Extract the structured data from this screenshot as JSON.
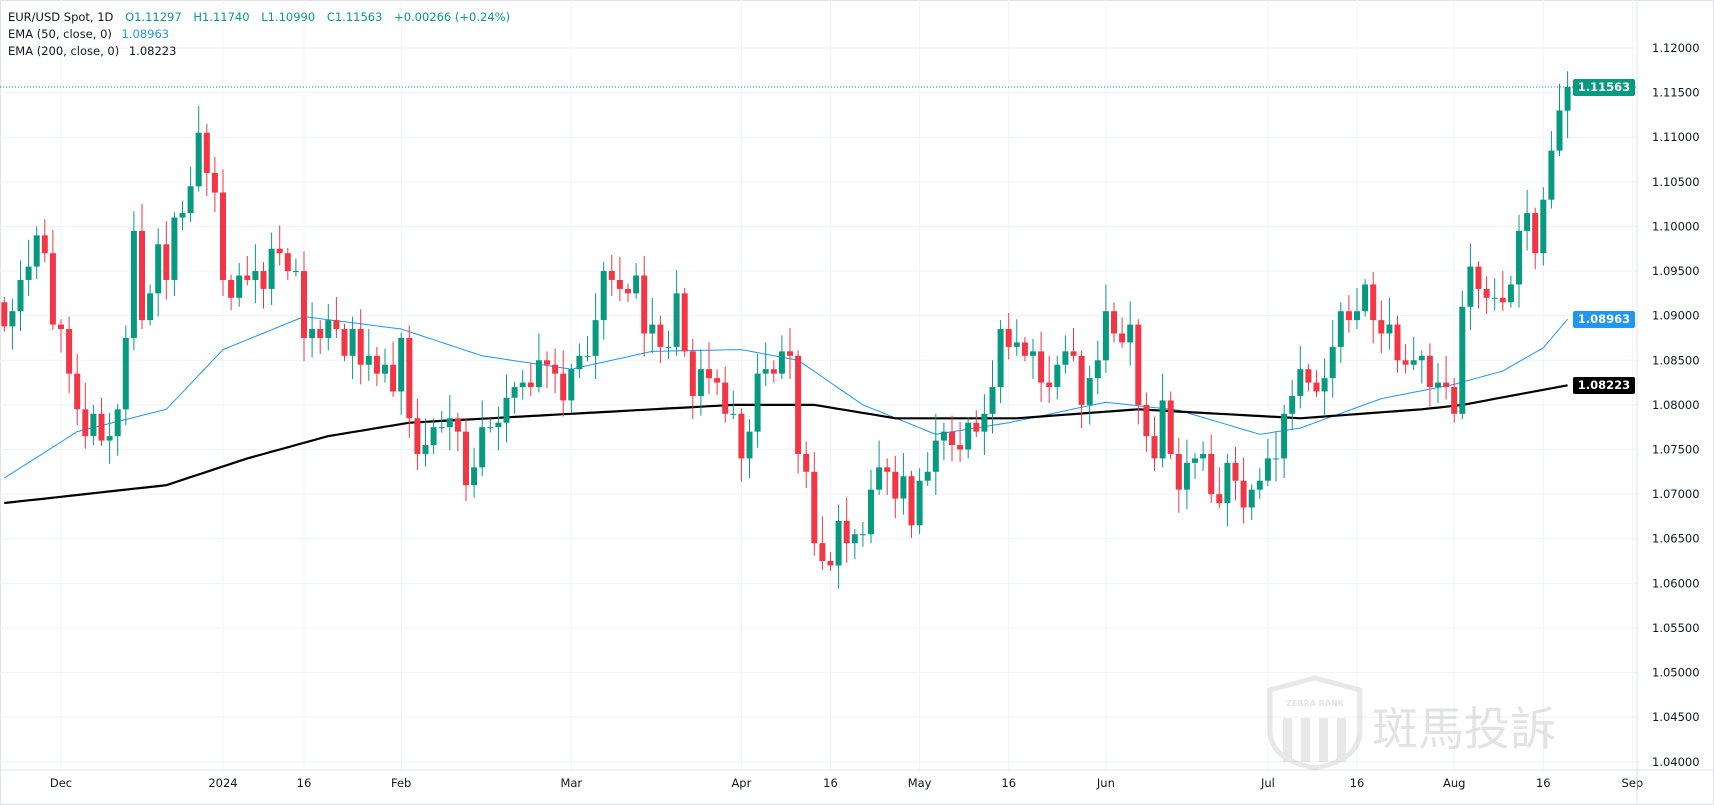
{
  "legend": {
    "symbol": "EUR/USD Spot, 1D",
    "open": "O1.11297",
    "high": "H1.11740",
    "low": "L1.10990",
    "close": "C1.11563",
    "change": "+0.00266 (+0.24%)",
    "ema50_label": "EMA (50, close, 0)",
    "ema50_value": "1.08963",
    "ema200_label": "EMA (200, close, 0)",
    "ema200_value": "1.08223"
  },
  "price_labels": {
    "last": "1.11563",
    "ema50": "1.08963",
    "ema200": "1.08223"
  },
  "colors": {
    "up": "#089981",
    "down": "#f23645",
    "ema50": "#2196f3",
    "ema200": "#000000",
    "grid": "#f0f3fa"
  },
  "watermark": {
    "brand": "ZEBRA RANK",
    "text": "斑馬投訴"
  },
  "chart_data": {
    "type": "candlestick",
    "title": "EUR/USD Spot, 1D",
    "ylim": [
      1.0395,
      1.1225
    ],
    "y_ticks": [
      "1.04000",
      "1.04500",
      "1.05000",
      "1.05500",
      "1.06000",
      "1.06500",
      "1.07000",
      "1.07500",
      "1.08000",
      "1.08500",
      "1.09000",
      "1.09500",
      "1.10000",
      "1.10500",
      "1.11000",
      "1.11500",
      "1.12000"
    ],
    "x_ticks": [
      {
        "label": "Dec",
        "bar": 7
      },
      {
        "label": "2024",
        "bar": 27
      },
      {
        "label": "16",
        "bar": 37
      },
      {
        "label": "Feb",
        "bar": 49
      },
      {
        "label": "Mar",
        "bar": 70
      },
      {
        "label": "Apr",
        "bar": 91
      },
      {
        "label": "16",
        "bar": 102
      },
      {
        "label": "May",
        "bar": 113
      },
      {
        "label": "16",
        "bar": 124
      },
      {
        "label": "Jun",
        "bar": 136
      },
      {
        "label": "Jul",
        "bar": 156
      },
      {
        "label": "16",
        "bar": 167
      },
      {
        "label": "Aug",
        "bar": 179
      },
      {
        "label": "16",
        "bar": 190
      },
      {
        "label": "Sep",
        "bar": 201
      }
    ],
    "first_open": 1.0915,
    "closes": [
      1.0888,
      1.0905,
      1.094,
      1.0955,
      1.099,
      1.097,
      1.089,
      1.0885,
      1.0835,
      1.0795,
      1.0765,
      1.079,
      1.076,
      1.0765,
      1.0795,
      1.0875,
      1.0995,
      1.0895,
      1.0925,
      1.098,
      1.094,
      1.101,
      1.1015,
      1.1045,
      1.1105,
      1.106,
      1.1038,
      1.094,
      1.092,
      1.0945,
      1.094,
      1.095,
      1.093,
      1.0975,
      1.097,
      1.095,
      1.095,
      1.0875,
      1.0885,
      1.0875,
      1.0895,
      1.0885,
      1.0855,
      1.0885,
      1.0845,
      1.0855,
      1.0835,
      1.0845,
      1.0815,
      1.0875,
      1.0785,
      1.0745,
      1.0755,
      1.0775,
      1.0775,
      1.0785,
      1.077,
      1.071,
      1.073,
      1.0775,
      1.0775,
      1.078,
      1.0808,
      1.082,
      1.0825,
      1.082,
      1.085,
      1.0845,
      1.0835,
      1.0805,
      1.084,
      1.0855,
      1.0855,
      1.0895,
      1.095,
      1.094,
      1.093,
      1.0925,
      1.0945,
      1.088,
      1.089,
      1.0865,
      1.0865,
      1.0925,
      1.086,
      1.081,
      1.084,
      1.083,
      1.0825,
      1.079,
      1.079,
      1.074,
      1.077,
      1.0835,
      1.084,
      1.0835,
      1.086,
      1.0855,
      1.0745,
      1.0725,
      1.0645,
      1.0625,
      1.062,
      1.067,
      1.0645,
      1.0655,
      1.0655,
      1.0705,
      1.073,
      1.0725,
      1.0695,
      1.072,
      1.0665,
      1.0715,
      1.0725,
      1.076,
      1.077,
      1.0755,
      1.075,
      1.078,
      1.077,
      1.079,
      1.082,
      1.0885,
      1.0865,
      1.087,
      1.0855,
      1.086,
      1.0825,
      1.082,
      1.0845,
      1.086,
      1.0855,
      1.08,
      1.083,
      1.085,
      1.0905,
      1.088,
      1.087,
      1.089,
      1.08,
      1.0765,
      1.074,
      1.0805,
      1.0745,
      1.0705,
      1.0735,
      1.074,
      1.0745,
      1.07,
      1.069,
      1.0735,
      1.0715,
      1.0685,
      1.0705,
      1.0715,
      1.074,
      1.074,
      1.079,
      1.081,
      1.084,
      1.0825,
      1.0815,
      1.083,
      1.0865,
      1.0905,
      1.0895,
      1.0905,
      1.0935,
      1.0895,
      1.088,
      1.089,
      1.085,
      1.0845,
      1.085,
      1.0855,
      1.082,
      1.0825,
      1.082,
      1.079,
      1.091,
      1.0955,
      1.093,
      1.092,
      1.092,
      1.0915,
      1.0935,
      1.0995,
      1.1015,
      1.097,
      1.103,
      1.1085,
      1.113,
      1.1156
    ],
    "last_bar": {
      "open": 1.11297,
      "high": 1.1174,
      "low": 1.1099,
      "close": 1.11563
    },
    "series": [
      {
        "name": "EMA (50, close, 0)",
        "points": [
          [
            0,
            1.0718
          ],
          [
            9,
            1.077
          ],
          [
            20,
            1.0795
          ],
          [
            27,
            1.0862
          ],
          [
            37,
            1.0899
          ],
          [
            49,
            1.0885
          ],
          [
            59,
            1.0855
          ],
          [
            70,
            1.084
          ],
          [
            80,
            1.086
          ],
          [
            91,
            1.0862
          ],
          [
            98,
            1.085
          ],
          [
            106,
            1.08
          ],
          [
            115,
            1.0767
          ],
          [
            124,
            1.078
          ],
          [
            136,
            1.0803
          ],
          [
            145,
            1.0794
          ],
          [
            155,
            1.0767
          ],
          [
            160,
            1.0774
          ],
          [
            170,
            1.0807
          ],
          [
            179,
            1.0823
          ],
          [
            185,
            1.0838
          ],
          [
            190,
            1.0864
          ],
          [
            193,
            1.0896
          ]
        ]
      },
      {
        "name": "EMA (200, close, 0)",
        "points": [
          [
            0,
            1.069
          ],
          [
            20,
            1.071
          ],
          [
            30,
            1.074
          ],
          [
            40,
            1.0765
          ],
          [
            50,
            1.078
          ],
          [
            70,
            1.079
          ],
          [
            90,
            1.08
          ],
          [
            100,
            1.08
          ],
          [
            110,
            1.0785
          ],
          [
            125,
            1.0785
          ],
          [
            140,
            1.0795
          ],
          [
            150,
            1.079
          ],
          [
            160,
            1.0785
          ],
          [
            175,
            1.0795
          ],
          [
            180,
            1.08
          ],
          [
            193,
            1.0822
          ]
        ]
      }
    ]
  }
}
